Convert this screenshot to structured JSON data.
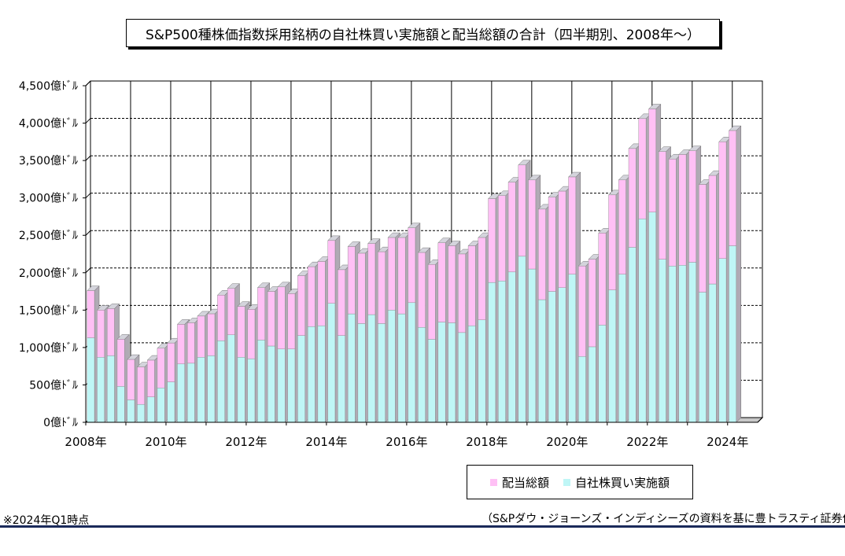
{
  "title": "S&P500種株価指数採用銘柄の自社株買い実施額と配当総額の合計（四半期別、2008年～）",
  "note": "※2024年Q1時点",
  "source": "（S&Pダウ・ジョーンズ・インディシーズの資料を基に豊トラスティ証券作成）",
  "colors": {
    "dividends": "#ffc0f5",
    "buybacks": "#bff6f6",
    "side": "#b0aab4",
    "top": "#d4d4dc"
  },
  "chart_data": {
    "type": "bar",
    "stacked": true,
    "title": "S&P500種株価指数採用銘柄の自社株買い実施額と配当総額の合計（四半期別、2008年～）",
    "ylim": [
      0,
      4500
    ],
    "y_ticks": [
      "0億ﾄﾞﾙ",
      "500億ﾄﾞﾙ",
      "1,000億ﾄﾞﾙ",
      "1,500億ﾄﾞﾙ",
      "2,000億ﾄﾞﾙ",
      "2,500億ﾄﾞﾙ",
      "3,000億ﾄﾞﾙ",
      "3,500億ﾄﾞﾙ",
      "4,000億ﾄﾞﾙ",
      "4,500億ﾄﾞﾙ"
    ],
    "x_ticks": [
      "2008年",
      "2010年",
      "2012年",
      "2014年",
      "2016年",
      "2018年",
      "2020年",
      "2022年",
      "2024年"
    ],
    "legend": [
      "配当総額",
      "自社株買い実施額"
    ],
    "legend_position": "bottom-right",
    "grid": true,
    "categories": [
      "2008Q1",
      "2008Q2",
      "2008Q3",
      "2008Q4",
      "2009Q1",
      "2009Q2",
      "2009Q3",
      "2009Q4",
      "2010Q1",
      "2010Q2",
      "2010Q3",
      "2010Q4",
      "2011Q1",
      "2011Q2",
      "2011Q3",
      "2011Q4",
      "2012Q1",
      "2012Q2",
      "2012Q3",
      "2012Q4",
      "2013Q1",
      "2013Q2",
      "2013Q3",
      "2013Q4",
      "2014Q1",
      "2014Q2",
      "2014Q3",
      "2014Q4",
      "2015Q1",
      "2015Q2",
      "2015Q3",
      "2015Q4",
      "2016Q1",
      "2016Q2",
      "2016Q3",
      "2016Q4",
      "2017Q1",
      "2017Q2",
      "2017Q3",
      "2017Q4",
      "2018Q1",
      "2018Q2",
      "2018Q3",
      "2018Q4",
      "2019Q1",
      "2019Q2",
      "2019Q3",
      "2019Q4",
      "2020Q1",
      "2020Q2",
      "2020Q3",
      "2020Q4",
      "2021Q1",
      "2021Q2",
      "2021Q3",
      "2021Q4",
      "2022Q1",
      "2022Q2",
      "2022Q3",
      "2022Q4",
      "2023Q1",
      "2023Q2",
      "2023Q3",
      "2023Q4",
      "2024Q1",
      "2024Q2",
      "2024Q3"
    ],
    "series": [
      {
        "name": "自社株買い実施額",
        "values": [
          1130,
          870,
          890,
          480,
          300,
          240,
          340,
          460,
          540,
          780,
          790,
          870,
          890,
          1090,
          1170,
          870,
          850,
          1100,
          1020,
          980,
          980,
          1160,
          1280,
          1290,
          1590,
          1160,
          1450,
          1320,
          1440,
          1320,
          1500,
          1450,
          1600,
          1270,
          1110,
          1340,
          1330,
          1200,
          1290,
          1370,
          1870,
          1890,
          2010,
          2220,
          2050,
          1640,
          1750,
          1800,
          1980,
          880,
          1010,
          1300,
          1770,
          1980,
          2340,
          2720,
          2810,
          2180,
          2090,
          2100,
          2140,
          1740,
          1850,
          2190,
          2360,
          null,
          null
        ]
      },
      {
        "name": "配当総額",
        "values": [
          630,
          630,
          630,
          630,
          540,
          500,
          490,
          530,
          520,
          530,
          540,
          550,
          560,
          610,
          620,
          680,
          660,
          700,
          730,
          830,
          740,
          800,
          800,
          860,
          840,
          880,
          900,
          940,
          950,
          960,
          970,
          1020,
          1000,
          1000,
          1000,
          1060,
          1030,
          1050,
          1070,
          1100,
          1120,
          1140,
          1200,
          1220,
          1190,
          1210,
          1260,
          1290,
          1300,
          1210,
          1170,
          1230,
          1270,
          1260,
          1320,
          1340,
          1380,
          1440,
          1430,
          1480,
          1490,
          1440,
          1450,
          1560,
          1540,
          null,
          null
        ]
      }
    ]
  }
}
